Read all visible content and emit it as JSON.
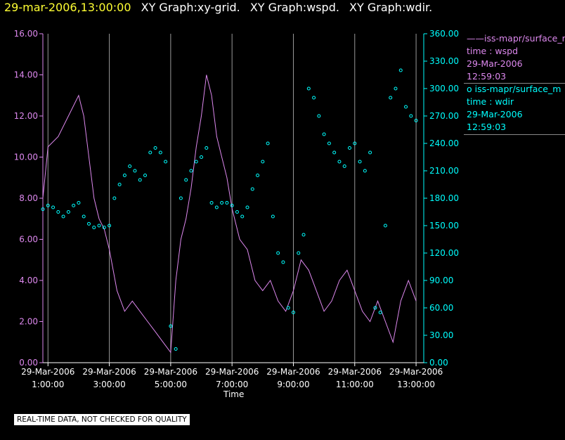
{
  "header": {
    "timestamp": "29-mar-2006,13:00:00",
    "titles": [
      "XY Graph:xy-grid.",
      "XY Graph:wspd.",
      "XY Graph:wdir."
    ]
  },
  "legend": {
    "series1": {
      "line": "——iss-mapr/surface_m",
      "y": "time : wspd",
      "date": "29-Mar-2006",
      "time": "12:59:03"
    },
    "series2": {
      "line": "o  iss-mapr/surface_m",
      "y": "time : wdir",
      "date": "29-Mar-2006",
      "time": "12:59:03"
    }
  },
  "notice": "REAL-TIME DATA, NOT CHECKED FOR QUALITY",
  "colors": {
    "wspd": "#dd88ee",
    "wdir": "#00ffff",
    "grid": "#999999",
    "header_time": "#ffff33"
  },
  "chart_data": {
    "type": "line+scatter",
    "xlabel": "Time",
    "x_range": [
      "29-Mar-2006 00:50",
      "29-Mar-2006 13:15"
    ],
    "x_ticks": [
      {
        "date": "29-Mar-2006",
        "time": "1:00:00"
      },
      {
        "date": "29-Mar-2006",
        "time": "3:00:00"
      },
      {
        "date": "29-Mar-2006",
        "time": "5:00:00"
      },
      {
        "date": "29-Mar-2006",
        "time": "7:00:00"
      },
      {
        "date": "29-Mar-2006",
        "time": "9:00:00"
      },
      {
        "date": "29-Mar-2006",
        "time": "11:00:00"
      },
      {
        "date": "29-Mar-2006",
        "time": "13:00:00"
      }
    ],
    "grid": "vertical lines at each x tick",
    "y_left": {
      "range": [
        0,
        16
      ],
      "ticks": [
        "0.00",
        "2.00",
        "4.00",
        "6.00",
        "8.00",
        "10.00",
        "12.00",
        "14.00",
        "16.00"
      ]
    },
    "y_right": {
      "range": [
        0,
        360
      ],
      "ticks": [
        "0.00",
        "30.00",
        "60.00",
        "90.00",
        "120.00",
        "150.00",
        "180.00",
        "210.00",
        "240.00",
        "270.00",
        "300.00",
        "330.00",
        "360.00"
      ]
    },
    "series": [
      {
        "name": "wspd",
        "axis": "left",
        "style": "line",
        "x": [
          "00:50",
          "01:00",
          "01:20",
          "01:40",
          "02:00",
          "02:10",
          "02:20",
          "02:30",
          "02:40",
          "02:50",
          "03:00",
          "03:15",
          "03:30",
          "03:45",
          "04:00",
          "04:15",
          "04:30",
          "04:45",
          "05:00",
          "05:10",
          "05:20",
          "05:30",
          "05:40",
          "05:50",
          "06:00",
          "06:10",
          "06:20",
          "06:30",
          "06:40",
          "06:50",
          "07:00",
          "07:15",
          "07:30",
          "07:45",
          "08:00",
          "08:15",
          "08:30",
          "08:45",
          "09:00",
          "09:15",
          "09:30",
          "09:45",
          "10:00",
          "10:15",
          "10:30",
          "10:45",
          "11:00",
          "11:15",
          "11:30",
          "11:45",
          "12:00",
          "12:15",
          "12:30",
          "12:45",
          "13:00"
        ],
        "values": [
          8.0,
          10.5,
          11.0,
          12.0,
          13.0,
          12.0,
          10.0,
          8.0,
          7.0,
          6.5,
          5.5,
          3.5,
          2.5,
          3.0,
          2.5,
          2.0,
          1.5,
          1.0,
          0.5,
          4.0,
          6.0,
          7.0,
          8.5,
          10.5,
          12.0,
          14.0,
          13.0,
          11.0,
          10.0,
          9.0,
          7.5,
          6.0,
          5.5,
          4.0,
          3.5,
          4.0,
          3.0,
          2.5,
          3.5,
          5.0,
          4.5,
          3.5,
          2.5,
          3.0,
          4.0,
          4.5,
          3.5,
          2.5,
          2.0,
          3.0,
          2.0,
          1.0,
          3.0,
          4.0,
          3.0
        ]
      },
      {
        "name": "wdir",
        "axis": "right",
        "style": "points",
        "x": [
          "00:50",
          "01:00",
          "01:10",
          "01:20",
          "01:30",
          "01:40",
          "01:50",
          "02:00",
          "02:10",
          "02:20",
          "02:30",
          "02:40",
          "02:50",
          "03:00",
          "03:10",
          "03:20",
          "03:30",
          "03:40",
          "03:50",
          "04:00",
          "04:10",
          "04:20",
          "04:30",
          "04:40",
          "04:50",
          "05:00",
          "05:10",
          "05:20",
          "05:30",
          "05:40",
          "05:50",
          "06:00",
          "06:10",
          "06:20",
          "06:30",
          "06:40",
          "06:50",
          "07:00",
          "07:10",
          "07:20",
          "07:30",
          "07:40",
          "07:50",
          "08:00",
          "08:10",
          "08:20",
          "08:30",
          "08:40",
          "08:50",
          "09:00",
          "09:10",
          "09:20",
          "09:30",
          "09:40",
          "09:50",
          "10:00",
          "10:10",
          "10:20",
          "10:30",
          "10:40",
          "10:50",
          "11:00",
          "11:10",
          "11:20",
          "11:30",
          "11:40",
          "11:50",
          "12:00",
          "12:10",
          "12:20",
          "12:30",
          "12:40",
          "12:50",
          "13:00"
        ],
        "values": [
          168,
          172,
          170,
          165,
          160,
          165,
          172,
          175,
          160,
          152,
          148,
          150,
          148,
          150,
          180,
          195,
          205,
          215,
          210,
          200,
          205,
          230,
          235,
          230,
          220,
          40,
          15,
          180,
          200,
          210,
          220,
          225,
          235,
          175,
          170,
          175,
          175,
          172,
          165,
          160,
          170,
          190,
          205,
          220,
          240,
          160,
          120,
          110,
          60,
          55,
          120,
          140,
          300,
          290,
          270,
          250,
          240,
          230,
          220,
          215,
          235,
          240,
          220,
          210,
          230,
          60,
          55,
          150,
          290,
          300,
          320,
          280,
          270,
          265
        ]
      }
    ]
  }
}
